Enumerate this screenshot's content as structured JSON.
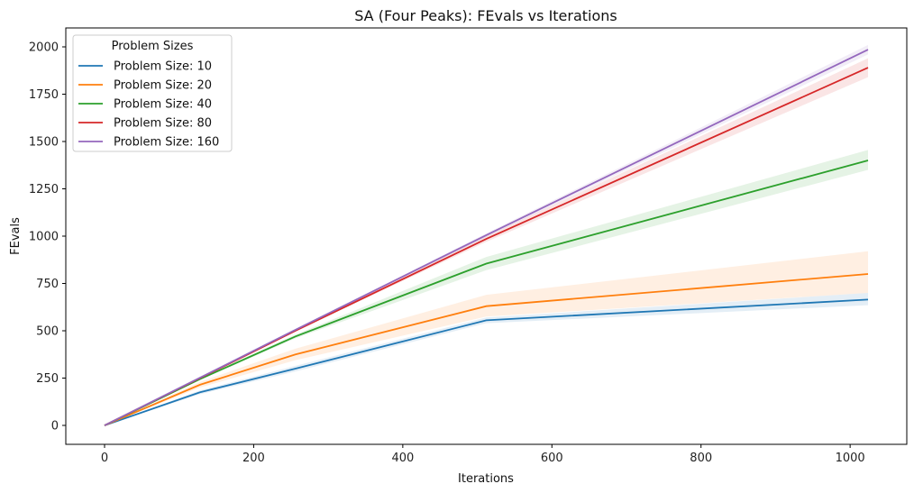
{
  "chart_data": {
    "type": "line",
    "title": "SA (Four Peaks): FEvals vs Iterations",
    "xlabel": "Iterations",
    "ylabel": "FEvals",
    "xlim": [
      -52,
      1076
    ],
    "ylim": [
      -100,
      2100
    ],
    "xticks": [
      0,
      200,
      400,
      600,
      800,
      1000
    ],
    "yticks": [
      0,
      250,
      500,
      750,
      1000,
      1250,
      1500,
      1750,
      2000
    ],
    "grid": false,
    "legend": {
      "title": "Problem Sizes",
      "placement": "top-left"
    },
    "x": [
      0,
      128,
      256,
      512,
      1024
    ],
    "series": [
      {
        "name": "Problem Size: 10",
        "color": "#1f77b4",
        "values": [
          0,
          175,
          300,
          555,
          665
        ],
        "band": [
          [
            0,
            0
          ],
          [
            165,
            185
          ],
          [
            285,
            315
          ],
          [
            540,
            570
          ],
          [
            635,
            700
          ]
        ]
      },
      {
        "name": "Problem Size: 20",
        "color": "#ff7f0e",
        "values": [
          0,
          215,
          375,
          630,
          800
        ],
        "band": [
          [
            0,
            0
          ],
          [
            200,
            230
          ],
          [
            345,
            405
          ],
          [
            575,
            690
          ],
          [
            700,
            920
          ]
        ]
      },
      {
        "name": "Problem Size: 40",
        "color": "#2ca02c",
        "values": [
          0,
          245,
          470,
          855,
          1400
        ],
        "band": [
          [
            0,
            0
          ],
          [
            240,
            250
          ],
          [
            460,
            480
          ],
          [
            820,
            890
          ],
          [
            1350,
            1455
          ]
        ]
      },
      {
        "name": "Problem Size: 80",
        "color": "#d62728",
        "values": [
          0,
          250,
          500,
          985,
          1890
        ],
        "band": [
          [
            0,
            0
          ],
          [
            248,
            252
          ],
          [
            497,
            503
          ],
          [
            970,
            1000
          ],
          [
            1840,
            1940
          ]
        ]
      },
      {
        "name": "Problem Size: 160",
        "color": "#9467bd",
        "values": [
          0,
          252,
          505,
          1005,
          1985
        ],
        "band": [
          [
            0,
            0
          ],
          [
            250,
            254
          ],
          [
            502,
            508
          ],
          [
            995,
            1015
          ],
          [
            1960,
            2010
          ]
        ]
      }
    ]
  }
}
